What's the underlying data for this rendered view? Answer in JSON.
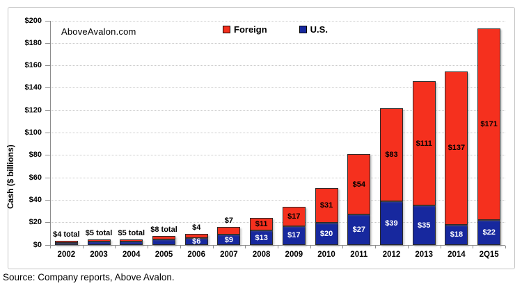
{
  "branding": {
    "watermark": "AboveAvalon.com",
    "source": "Source: Company reports, Above Avalon."
  },
  "legend": [
    {
      "label": "Foreign",
      "color": "#f5301e"
    },
    {
      "label": "U.S.",
      "color": "#17289e"
    }
  ],
  "colors": {
    "foreign": "#f5301e",
    "us": "#17289e",
    "bar_border": "#2b2b2b",
    "gridline": "#c9c9c9",
    "axis": "#8c8c8c",
    "frame_border": "#c4c4c4",
    "label_on_red": "#000000",
    "label_on_blue": "#ffffff"
  },
  "chart_data": {
    "type": "bar",
    "stacked": true,
    "title": "",
    "xlabel": "",
    "ylabel": "Cash ($ billions)",
    "ylim": [
      0,
      200
    ],
    "ytick_step": 20,
    "ytick_labels": [
      "$0",
      "$20",
      "$40",
      "$60",
      "$80",
      "$100",
      "$120",
      "$140",
      "$160",
      "$180",
      "$200"
    ],
    "grid": "dotted-horizontal",
    "legend_position": "top-inside",
    "categories": [
      "2002",
      "2003",
      "2004",
      "2005",
      "2006",
      "2007",
      "2008",
      "2009",
      "2010",
      "2011",
      "2012",
      "2013",
      "2014",
      "2Q15"
    ],
    "series": [
      {
        "name": "U.S.",
        "color": "#17289e",
        "values": [
          2,
          3,
          3,
          5,
          6,
          9,
          13,
          17,
          20,
          27,
          39,
          35,
          18,
          22
        ],
        "labels": [
          "",
          "",
          "",
          "",
          "$6",
          "$9",
          "$13",
          "$17",
          "$20",
          "$27",
          "$39",
          "$35",
          "$18",
          "$22"
        ]
      },
      {
        "name": "Foreign",
        "color": "#f5301e",
        "values": [
          2,
          2,
          2,
          3,
          4,
          7,
          11,
          17,
          31,
          54,
          83,
          111,
          137,
          171
        ],
        "labels": [
          "",
          "",
          "",
          "",
          "$4",
          "$7",
          "$11",
          "$17",
          "$31",
          "$54",
          "$83",
          "$111",
          "$137",
          "$171"
        ]
      }
    ],
    "total_labels": [
      "$4 total",
      "$5 total",
      "$5 total",
      "$8 total",
      "",
      "",
      "",
      "",
      "",
      "",
      "",
      "",
      "",
      ""
    ],
    "foreign_label_above_bar": [
      false,
      false,
      false,
      false,
      true,
      true,
      false,
      false,
      false,
      false,
      false,
      false,
      false,
      false
    ]
  }
}
